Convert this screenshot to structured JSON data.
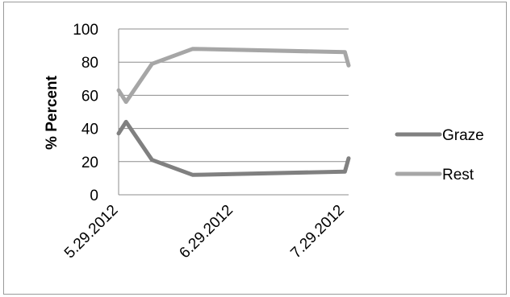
{
  "chart_data": {
    "type": "line",
    "ylabel": "% Percent",
    "xlabel": "",
    "title": "",
    "ylim": [
      0,
      100
    ],
    "y_ticks": [
      0,
      20,
      40,
      60,
      80,
      100
    ],
    "x_ticks": [
      "5.29.2012",
      "6.29.2012",
      "7.29.2012"
    ],
    "x_tick_dates": [
      "2012-05-29",
      "2012-06-29",
      "2012-07-29"
    ],
    "grid": true,
    "legend_position": "right",
    "series": [
      {
        "name": "Graze",
        "color": "#808080",
        "points": [
          {
            "x": "2012-05-29",
            "y": 37
          },
          {
            "x": "2012-05-31",
            "y": 44
          },
          {
            "x": "2012-06-07",
            "y": 21
          },
          {
            "x": "2012-06-18",
            "y": 12
          },
          {
            "x": "2012-07-29",
            "y": 14
          },
          {
            "x": "2012-07-30",
            "y": 22
          }
        ]
      },
      {
        "name": "Rest",
        "color": "#a6a6a6",
        "points": [
          {
            "x": "2012-05-29",
            "y": 63
          },
          {
            "x": "2012-05-31",
            "y": 56
          },
          {
            "x": "2012-06-07",
            "y": 79
          },
          {
            "x": "2012-06-18",
            "y": 88
          },
          {
            "x": "2012-07-29",
            "y": 86
          },
          {
            "x": "2012-07-30",
            "y": 78
          }
        ]
      }
    ]
  }
}
